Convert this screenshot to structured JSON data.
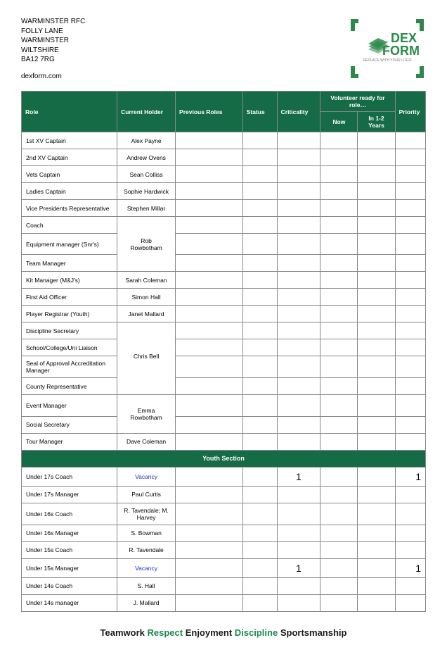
{
  "address": {
    "line1": "WARMINSTER RFC",
    "line2": "FOLLY LANE",
    "line3": "WARMINSTER",
    "line4": "WILTSHIRE",
    "line5": "BA12 7RG",
    "site": "dexform.com"
  },
  "logo": {
    "brand1": "DEX",
    "brand2": "FORM",
    "tagline": "REPLACE WITH YOUR LOGO",
    "bracket_color": "#2b8a4a",
    "text_color": "#2b8a4a",
    "tagline_color": "#777"
  },
  "headers": {
    "role": "Role",
    "holder": "Current Holder",
    "previous": "Previous Roles",
    "status": "Status",
    "criticality": "Criticality",
    "volunteer": "Volunteer ready for role…",
    "now": "Now",
    "years": "In 1-2 Years",
    "priority": "Priority"
  },
  "rows": [
    {
      "role": "1st XV Captain",
      "holder": "Alex Payne"
    },
    {
      "role": "2nd XV Captain",
      "holder": "Andrew Ovens"
    },
    {
      "role": "Vets Captain",
      "holder": "Sean Colliss"
    },
    {
      "role": "Ladies Captain",
      "holder": "Sophie Hardwick"
    },
    {
      "role": "Vice Presidents Representative",
      "holder": "Stephen Millar"
    },
    {
      "role": "Coach",
      "holder": "",
      "merge_start": true
    },
    {
      "role": "Equipment manager (Snr's)",
      "holder": "Rob Rowbotham",
      "merge_mid": true
    },
    {
      "role": "Team Manager",
      "holder": "",
      "merge_end": true
    },
    {
      "role": "Kit Manager (M&J's)",
      "holder": "Sarah Coleman"
    },
    {
      "role": "First Aid Officer",
      "holder": "Simon Hall"
    },
    {
      "role": "Player Registrar (Youth)",
      "holder": "Janet Mallard"
    },
    {
      "role": "Discipline Secretary",
      "holder": "",
      "merge_start": true
    },
    {
      "role": "School/College/Uni Liaison",
      "holder": "",
      "merge_mid": true
    },
    {
      "role": "Seal of Approval Accreditation Manager",
      "holder": "Chris Bell",
      "merge_mid_center": true
    },
    {
      "role": "County Representative",
      "holder": "",
      "merge_end": true
    },
    {
      "role": "Event Manager",
      "holder": "",
      "merge_start": true
    },
    {
      "role": "Social Secretary",
      "holder": "Emma Rowbotham",
      "merge_end_show": true
    },
    {
      "role": "Tour Manager",
      "holder": "Dave Coleman"
    }
  ],
  "youth_section_title": "Youth Section",
  "youth_rows": [
    {
      "role": "Under 17s Coach",
      "holder": "Vacancy",
      "vacancy": true,
      "criticality": "1",
      "priority": "1"
    },
    {
      "role": "Under 17s Manager",
      "holder": "Paul Curtis"
    },
    {
      "role": "Under 16s Coach",
      "holder": "R. Tavendale; M. Harvey"
    },
    {
      "role": "Under 16s Manager",
      "holder": "S. Bowman"
    },
    {
      "role": "Under 15s Coach",
      "holder": "R. Tavendale"
    },
    {
      "role": "Under 15s Manager",
      "holder": "Vacancy",
      "vacancy": true,
      "criticality": "1",
      "priority": "1"
    },
    {
      "role": "Under 14s Coach",
      "holder": "S. Hall"
    },
    {
      "role": "Under 14s manager",
      "holder": "J. Mallard"
    }
  ],
  "footer": {
    "w1": "Teamwork",
    "w2": "Respect",
    "w3": "Enjoyment",
    "w4": "Discipline",
    "w5": "Sportsmanship"
  }
}
